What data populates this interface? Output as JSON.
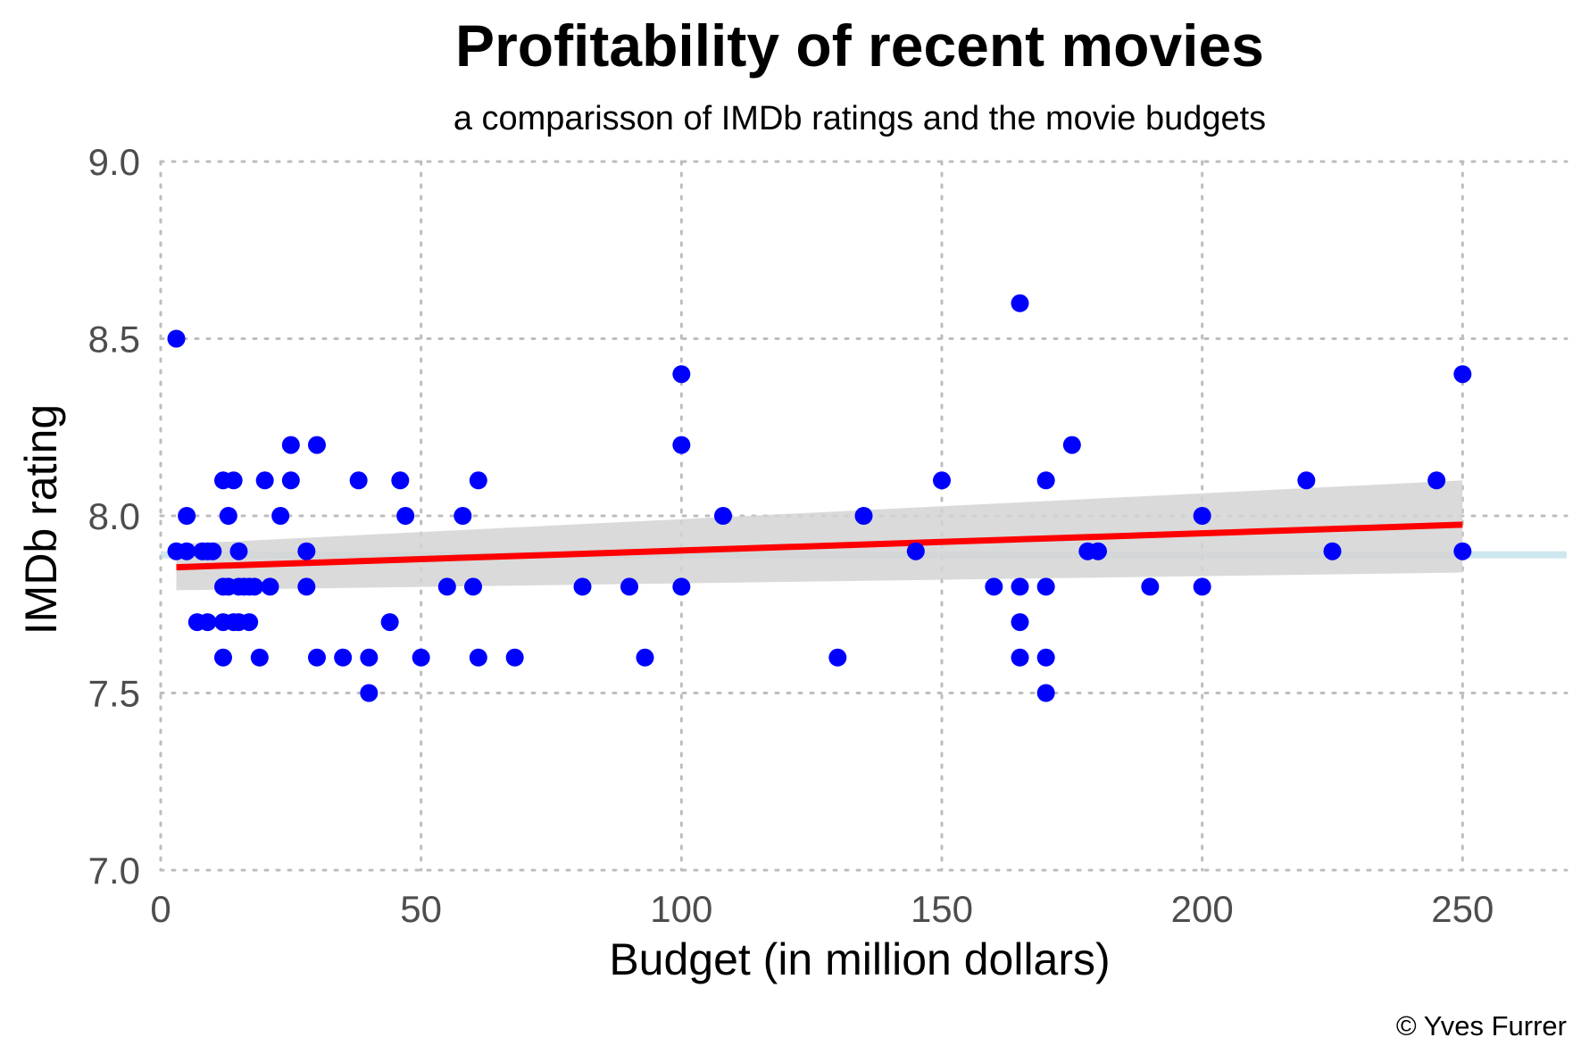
{
  "chart_data": {
    "type": "scatter",
    "title": "Profitability of recent movies",
    "subtitle": "a comparisson of IMDb ratings and the movie budgets",
    "xlabel": "Budget (in million dollars)",
    "ylabel": "IMDb rating",
    "caption": "© Yves Furrer",
    "xlim": [
      0,
      270
    ],
    "ylim": [
      7.0,
      9.0
    ],
    "x_ticks": [
      0,
      50,
      100,
      150,
      200,
      250
    ],
    "y_ticks": [
      7.0,
      7.5,
      8.0,
      8.5,
      9.0
    ],
    "x_tick_labels": [
      "0",
      "50",
      "100",
      "150",
      "200",
      "250"
    ],
    "y_tick_labels": [
      "7.0",
      "7.5",
      "8.0",
      "8.5",
      "9.0"
    ],
    "grid": true,
    "point_color": "#0000ff",
    "fit_line_color": "#ff0000",
    "confidence_band_color": "#d3d3d3",
    "mean_line_color": "#add8e6",
    "mean_rating": 7.89,
    "trend": {
      "x_start": 3,
      "y_start": 7.855,
      "x_end": 250,
      "y_end": 7.975
    },
    "confidence_band": {
      "lower_start": 7.79,
      "upper_start": 7.92,
      "lower_end": 7.84,
      "upper_end": 8.1
    },
    "points": [
      {
        "x": 3,
        "y": 8.5
      },
      {
        "x": 3,
        "y": 7.9
      },
      {
        "x": 5,
        "y": 8.0
      },
      {
        "x": 5,
        "y": 7.9
      },
      {
        "x": 7,
        "y": 7.7
      },
      {
        "x": 8,
        "y": 7.9
      },
      {
        "x": 9,
        "y": 7.7
      },
      {
        "x": 9,
        "y": 7.9
      },
      {
        "x": 10,
        "y": 7.9
      },
      {
        "x": 12,
        "y": 8.1
      },
      {
        "x": 12,
        "y": 7.8
      },
      {
        "x": 12,
        "y": 7.7
      },
      {
        "x": 12,
        "y": 7.6
      },
      {
        "x": 13,
        "y": 8.0
      },
      {
        "x": 13,
        "y": 7.8
      },
      {
        "x": 14,
        "y": 8.1
      },
      {
        "x": 14,
        "y": 7.7
      },
      {
        "x": 15,
        "y": 7.9
      },
      {
        "x": 15,
        "y": 7.8
      },
      {
        "x": 15,
        "y": 7.7
      },
      {
        "x": 16,
        "y": 7.8
      },
      {
        "x": 17,
        "y": 7.8
      },
      {
        "x": 17,
        "y": 7.7
      },
      {
        "x": 18,
        "y": 7.8
      },
      {
        "x": 19,
        "y": 7.6
      },
      {
        "x": 20,
        "y": 8.1
      },
      {
        "x": 21,
        "y": 7.8
      },
      {
        "x": 23,
        "y": 8.0
      },
      {
        "x": 25,
        "y": 8.2
      },
      {
        "x": 25,
        "y": 8.1
      },
      {
        "x": 28,
        "y": 7.9
      },
      {
        "x": 28,
        "y": 7.8
      },
      {
        "x": 30,
        "y": 8.2
      },
      {
        "x": 30,
        "y": 7.6
      },
      {
        "x": 35,
        "y": 7.6
      },
      {
        "x": 38,
        "y": 8.1
      },
      {
        "x": 40,
        "y": 7.6
      },
      {
        "x": 40,
        "y": 7.5
      },
      {
        "x": 44,
        "y": 7.7
      },
      {
        "x": 46,
        "y": 8.1
      },
      {
        "x": 47,
        "y": 8.0
      },
      {
        "x": 50,
        "y": 7.6
      },
      {
        "x": 55,
        "y": 7.8
      },
      {
        "x": 58,
        "y": 8.0
      },
      {
        "x": 60,
        "y": 7.8
      },
      {
        "x": 61,
        "y": 8.1
      },
      {
        "x": 61,
        "y": 7.6
      },
      {
        "x": 68,
        "y": 7.6
      },
      {
        "x": 81,
        "y": 7.8
      },
      {
        "x": 90,
        "y": 7.8
      },
      {
        "x": 93,
        "y": 7.6
      },
      {
        "x": 100,
        "y": 8.4
      },
      {
        "x": 100,
        "y": 8.2
      },
      {
        "x": 100,
        "y": 7.8
      },
      {
        "x": 108,
        "y": 8.0
      },
      {
        "x": 130,
        "y": 7.6
      },
      {
        "x": 135,
        "y": 8.0
      },
      {
        "x": 145,
        "y": 7.9
      },
      {
        "x": 150,
        "y": 8.1
      },
      {
        "x": 160,
        "y": 7.8
      },
      {
        "x": 165,
        "y": 8.6
      },
      {
        "x": 165,
        "y": 7.8
      },
      {
        "x": 165,
        "y": 7.7
      },
      {
        "x": 165,
        "y": 7.6
      },
      {
        "x": 170,
        "y": 8.1
      },
      {
        "x": 170,
        "y": 7.8
      },
      {
        "x": 170,
        "y": 7.6
      },
      {
        "x": 170,
        "y": 7.5
      },
      {
        "x": 175,
        "y": 8.2
      },
      {
        "x": 178,
        "y": 7.9
      },
      {
        "x": 180,
        "y": 7.9
      },
      {
        "x": 190,
        "y": 7.8
      },
      {
        "x": 200,
        "y": 8.0
      },
      {
        "x": 200,
        "y": 7.8
      },
      {
        "x": 220,
        "y": 8.1
      },
      {
        "x": 225,
        "y": 7.9
      },
      {
        "x": 245,
        "y": 8.1
      },
      {
        "x": 250,
        "y": 8.4
      },
      {
        "x": 250,
        "y": 7.9
      }
    ]
  }
}
